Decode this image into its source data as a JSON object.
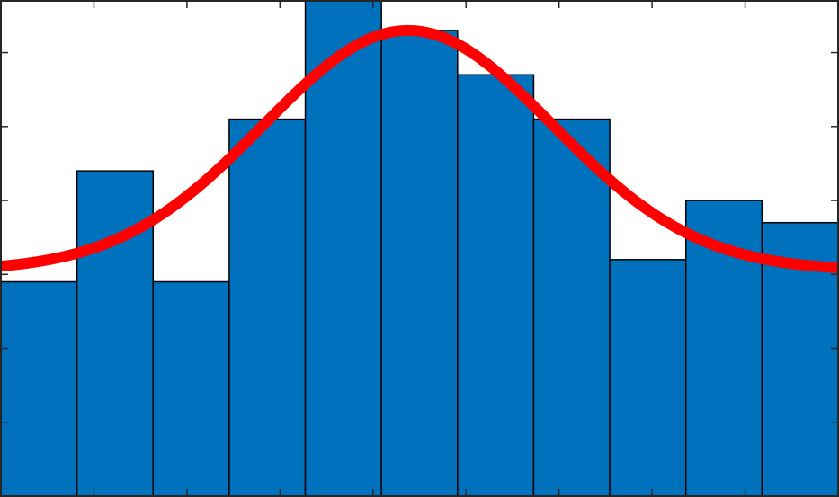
{
  "chart_data": {
    "type": "bar",
    "title": "",
    "xlabel": "",
    "ylabel": "",
    "bins": 11,
    "values": [
      2.9,
      4.4,
      2.9,
      5.1,
      6.7,
      6.3,
      5.7,
      5.1,
      3.2,
      4.0,
      3.7
    ],
    "ylim": [
      0,
      6.7
    ],
    "grid": false,
    "fit_curve": {
      "type": "gaussian",
      "baseline": 3.05,
      "peak": 6.3,
      "center_bin": 5.35,
      "sigma_bins": 1.9
    },
    "colors": {
      "bar_fill": "#0072BD",
      "bar_edge": "#000000",
      "curve": "#FF0000",
      "axes": "#262626",
      "background": "#ffffff"
    }
  }
}
